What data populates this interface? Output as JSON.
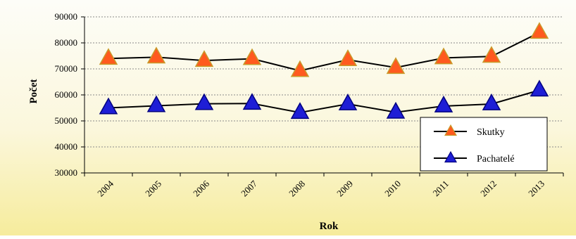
{
  "chart_data": {
    "type": "line",
    "title": "",
    "xlabel": "Rok",
    "ylabel": "Počet",
    "categories": [
      "2004",
      "2005",
      "2006",
      "2007",
      "2008",
      "2009",
      "2010",
      "2011",
      "2012",
      "2013"
    ],
    "ylim": [
      30000,
      90000
    ],
    "yticks": [
      "30000",
      "40000",
      "50000",
      "60000",
      "70000",
      "80000",
      "90000"
    ],
    "grid": "horizontal dashed",
    "legend_position": "bottom-right",
    "series": [
      {
        "name": "Skutky",
        "values": [
          74000,
          74500,
          73200,
          73900,
          69300,
          73500,
          70500,
          74200,
          74800,
          84000
        ],
        "marker": "triangle",
        "marker_fill": "#ff5a1f",
        "marker_stroke": "#c89a2a",
        "line_color": "#000000"
      },
      {
        "name": "Pachatelé",
        "values": [
          55000,
          55800,
          56600,
          56700,
          53200,
          56500,
          53300,
          55700,
          56500,
          61800
        ],
        "marker": "triangle",
        "marker_fill": "#1e1ed6",
        "marker_stroke": "#000080",
        "line_color": "#000000"
      }
    ]
  }
}
